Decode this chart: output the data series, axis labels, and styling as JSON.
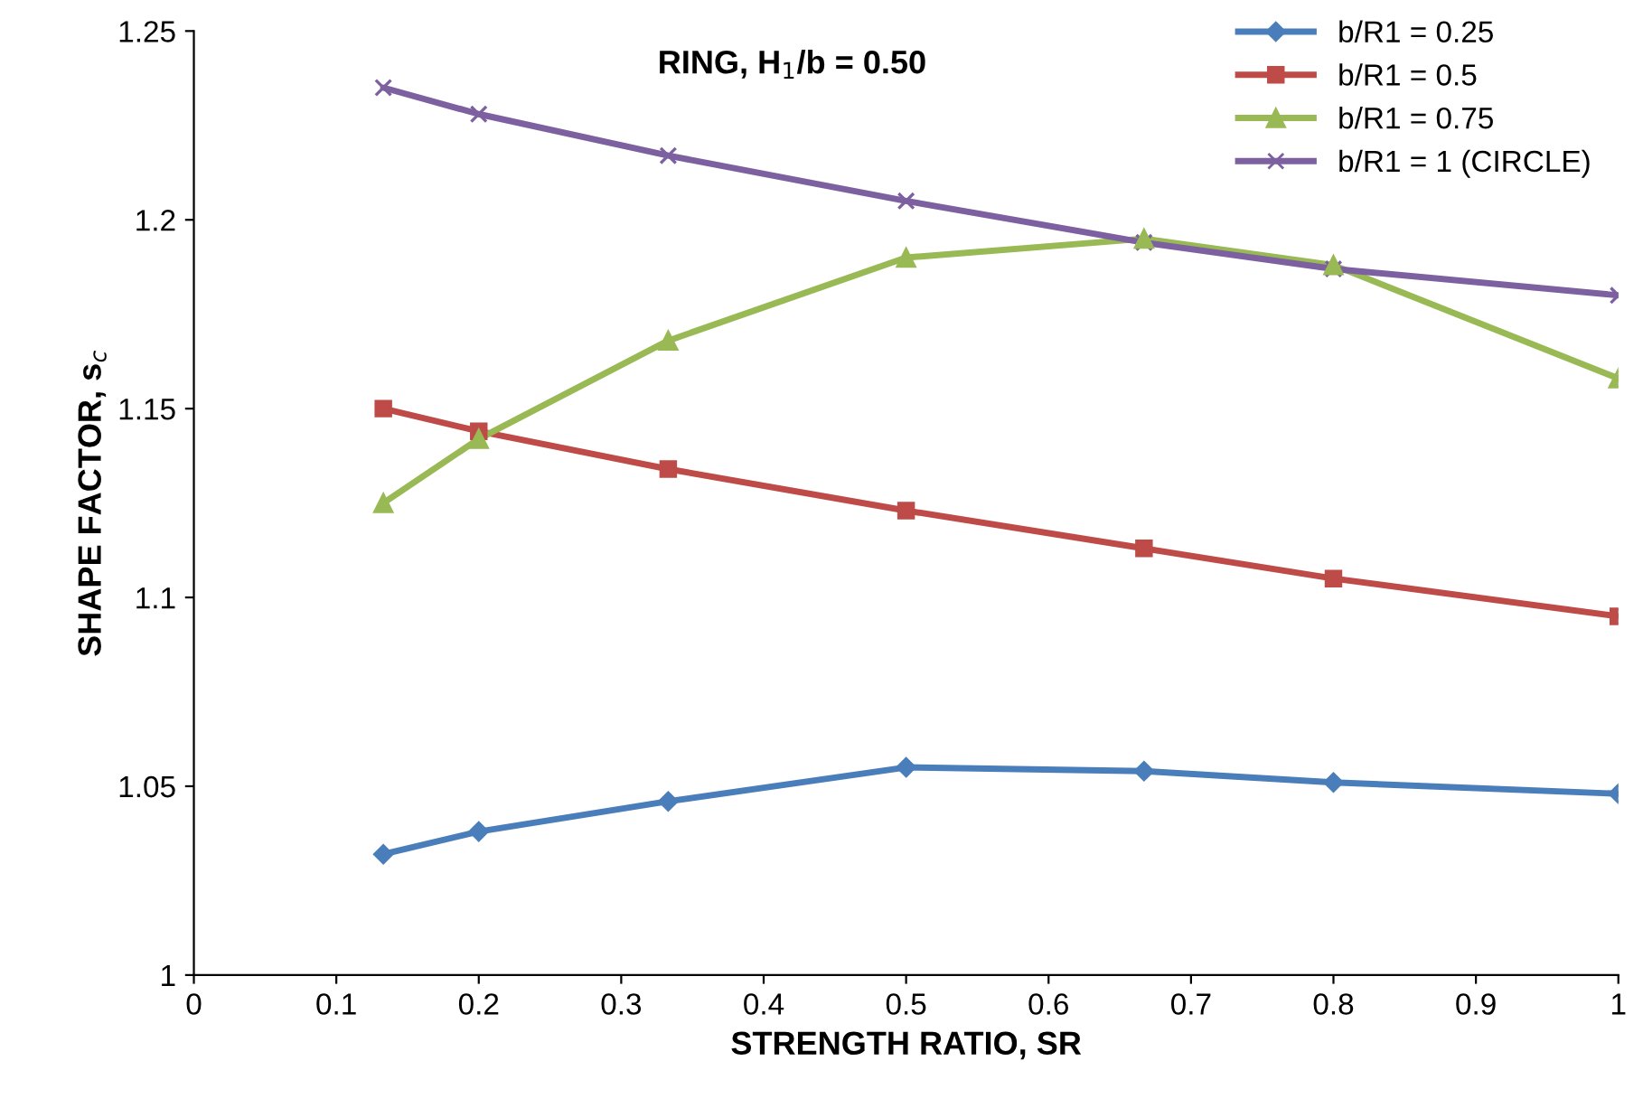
{
  "chart_data": {
    "type": "line",
    "title": "RING, H$_{1}$/b = 0.50",
    "xlabel": "STRENGTH RATIO, SR",
    "ylabel": "SHAPE FACTOR, s$_{c}$",
    "x": [
      0.133,
      0.2,
      0.333,
      0.5,
      0.667,
      0.8,
      1
    ],
    "series": [
      {
        "name": "b/R1 = 0.25",
        "color": "#4a7ebb",
        "marker": "diamond",
        "values": [
          1.032,
          1.038,
          1.046,
          1.055,
          1.054,
          1.051,
          1.048
        ]
      },
      {
        "name": "b/R1 = 0.5",
        "color": "#be4b48",
        "marker": "square",
        "values": [
          1.15,
          1.144,
          1.134,
          1.123,
          1.113,
          1.105,
          1.095
        ]
      },
      {
        "name": "b/R1 = 0.75",
        "color": "#98b954",
        "marker": "triangle",
        "values": [
          1.125,
          1.142,
          1.168,
          1.19,
          1.195,
          1.188,
          1.158
        ]
      },
      {
        "name": "b/R1 = 1 (CIRCLE)",
        "color": "#7d60a0",
        "marker": "cross",
        "values": [
          1.235,
          1.228,
          1.217,
          1.205,
          1.194,
          1.187,
          1.18
        ]
      }
    ],
    "xlim": [
      0,
      1
    ],
    "xticks": [
      0,
      0.1,
      0.2,
      0.3,
      0.4,
      0.5,
      0.6,
      0.7,
      0.8,
      0.9,
      1
    ],
    "ylim": [
      1,
      1.25
    ],
    "yticks": [
      1,
      1.05,
      1.1,
      1.15,
      1.2,
      1.25
    ],
    "grid": false,
    "legend": "top right",
    "line_style": "solid"
  }
}
